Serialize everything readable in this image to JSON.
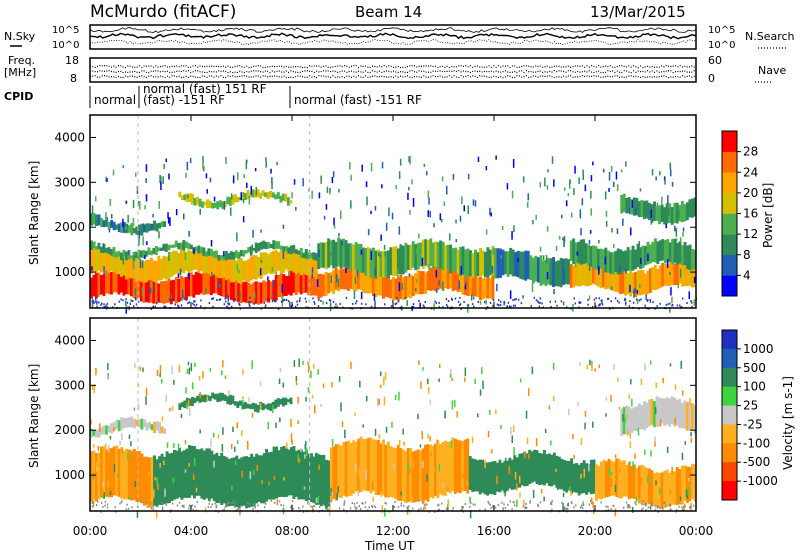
{
  "header": {
    "station": "McMurdo (fitACF)",
    "beam": "Beam 14",
    "date": "13/Mar/2015"
  },
  "params": {
    "nsky_label": "N.Sky",
    "nsky_ticks": [
      "10^5",
      "10^0"
    ],
    "nsearch_label": "N.Search",
    "nsearch_ticks": [
      "10^5",
      "10^0"
    ],
    "freq_label": "Freq.",
    "freq_unit": "[MHz]",
    "freq_ticks": [
      "18",
      "8"
    ],
    "nave_label": "Nave",
    "nave_ticks": [
      "60",
      "0"
    ],
    "cpid_label": "CPID",
    "cpid_segments": [
      {
        "label": "normal",
        "start": 0,
        "end": 1.9
      },
      {
        "label": "normal (fast) 151 RF",
        "start": 1.9,
        "end": 8.7
      },
      {
        "label": "(fast) -151 RF",
        "start": 1.9,
        "end": 8.7
      },
      {
        "label": "normal (fast) -151 RF",
        "start": 8.7,
        "end": 24
      }
    ]
  },
  "colors": {
    "power_scale": [
      "#0000ff",
      "#1f5fb8",
      "#2e8b57",
      "#4caf50",
      "#d4c000",
      "#ffa500",
      "#ff6a00",
      "#ff0000"
    ],
    "velocity_scale": [
      "#1f2fbf",
      "#1f5fb8",
      "#2e8b57",
      "#3fd43f",
      "#c8c8c8",
      "#ffb020",
      "#ff8c00",
      "#ff4500",
      "#ff0000"
    ]
  },
  "chart_data": [
    {
      "type": "heatmap",
      "name": "power",
      "ylabel": "Slant Range [km]",
      "xlim": [
        0,
        24
      ],
      "ylim": [
        200,
        4500
      ],
      "yticks": [
        "4000",
        "3000",
        "2000",
        "1000"
      ],
      "ytick_values": [
        4000,
        3000,
        2000,
        1000
      ],
      "colorbar_label": "Power [dB]",
      "colorbar_ticks": [
        "28",
        "24",
        "20",
        "16",
        "12",
        "8",
        "4"
      ],
      "colorbar_range": [
        0,
        32
      ],
      "bands": [
        {
          "x": [
            0,
            9
          ],
          "range": [
            400,
            900
          ],
          "level": 28
        },
        {
          "x": [
            0,
            9
          ],
          "range": [
            900,
            1400
          ],
          "level": 20
        },
        {
          "x": [
            0,
            9
          ],
          "range": [
            1400,
            1550
          ],
          "level": 12
        },
        {
          "x": [
            9,
            16
          ],
          "range": [
            500,
            1000
          ],
          "level": 24
        },
        {
          "x": [
            9,
            16
          ],
          "range": [
            1000,
            1600
          ],
          "level": 14
        },
        {
          "x": [
            16,
            19
          ],
          "range": [
            800,
            1400
          ],
          "level": 10
        },
        {
          "x": [
            19,
            24
          ],
          "range": [
            600,
            1100
          ],
          "level": 22
        },
        {
          "x": [
            19,
            24
          ],
          "range": [
            1100,
            1600
          ],
          "level": 12
        },
        {
          "x": [
            0,
            3
          ],
          "range": [
            1950,
            2150
          ],
          "level": 10
        },
        {
          "x": [
            3.5,
            8
          ],
          "range": [
            2550,
            2700
          ],
          "level": 16
        },
        {
          "x": [
            21,
            24
          ],
          "range": [
            2200,
            2600
          ],
          "level": 12
        }
      ]
    },
    {
      "type": "heatmap",
      "name": "velocity",
      "ylabel": "Slant Range [km]",
      "xlabel": "Time UT",
      "xlim": [
        0,
        24
      ],
      "ylim": [
        200,
        4500
      ],
      "yticks": [
        "4000",
        "3000",
        "2000",
        "1000"
      ],
      "ytick_values": [
        4000,
        3000,
        2000,
        1000
      ],
      "xticks": [
        "00:00",
        "04:00",
        "08:00",
        "12:00",
        "16:00",
        "20:00",
        "00:00"
      ],
      "xtick_values": [
        0,
        4,
        8,
        12,
        16,
        20,
        24
      ],
      "colorbar_label": "Velocity [m s-1]",
      "colorbar_ticks": [
        "1000",
        "500",
        "100",
        "25",
        "-25",
        "-100",
        "-500",
        "-1000"
      ],
      "bands": [
        {
          "x": [
            0,
            2.5
          ],
          "range": [
            400,
            1500
          ],
          "level": -100
        },
        {
          "x": [
            2.5,
            9.5
          ],
          "range": [
            400,
            1500
          ],
          "level": 300
        },
        {
          "x": [
            9.5,
            15
          ],
          "range": [
            500,
            1700
          ],
          "level": -100
        },
        {
          "x": [
            15,
            20
          ],
          "range": [
            700,
            1400
          ],
          "level": 300
        },
        {
          "x": [
            20,
            24
          ],
          "range": [
            400,
            1200
          ],
          "level": -100
        },
        {
          "x": [
            0,
            3
          ],
          "range": [
            1950,
            2150
          ],
          "level": 0
        },
        {
          "x": [
            3.5,
            8
          ],
          "range": [
            2550,
            2700
          ],
          "level": 200
        },
        {
          "x": [
            21,
            24
          ],
          "range": [
            2000,
            2600
          ],
          "level": 0
        }
      ]
    }
  ]
}
